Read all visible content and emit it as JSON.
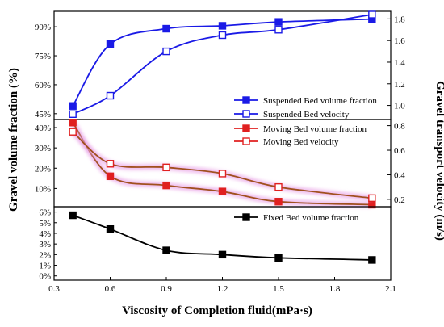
{
  "chart_data": {
    "type": "line",
    "xlabel": "Viscosity of Completion fluid(mPa·s)",
    "ylabel_left": "Gravel volume fraction (%)",
    "ylabel_right": "Gravel transport velocity (m/s)",
    "x_ticks": [
      "0.3",
      "0.6",
      "0.9",
      "1.2",
      "1.5",
      "1.8",
      "2.1"
    ],
    "xlim": [
      0.3,
      2.1
    ],
    "x": [
      0.4,
      0.6,
      0.9,
      1.2,
      1.5,
      2.0
    ],
    "panels": [
      {
        "name": "suspended",
        "left_ticks": [
          "45%",
          "60%",
          "75%",
          "90%"
        ],
        "left_lim": [
          42,
          98
        ],
        "right_ticks": [
          "1.0",
          "1.2",
          "1.4",
          "1.6",
          "1.8"
        ],
        "right_lim": [
          0.87,
          1.87
        ],
        "series": [
          {
            "name": "Suspended Bed volume fraction",
            "axis": "left",
            "marker": "filled",
            "color": "#1a1ae6",
            "values": [
              49,
              81,
              89,
              90.5,
              92.5,
              94
            ]
          },
          {
            "name": "Suspended Bed velocity",
            "axis": "right",
            "marker": "open",
            "color": "#1a1ae6",
            "values": [
              0.92,
              1.09,
              1.5,
              1.65,
              1.7,
              1.84
            ]
          }
        ]
      },
      {
        "name": "moving",
        "left_ticks": [
          "10%",
          "20%",
          "30%",
          "40%"
        ],
        "left_lim": [
          1,
          44
        ],
        "right_ticks": [
          "0.2",
          "0.4",
          "0.6",
          "0.8"
        ],
        "right_lim": [
          0.14,
          0.85
        ],
        "series": [
          {
            "name": "Moving Bed volume fraction",
            "axis": "left",
            "marker": "filled",
            "color": "#e02020",
            "values": [
              42.5,
              16,
              11.5,
              8.5,
              3.5,
              2
            ]
          },
          {
            "name": "Moving Bed velocity",
            "axis": "right",
            "marker": "open",
            "color": "#e02020",
            "values": [
              0.75,
              0.49,
              0.46,
              0.41,
              0.3,
              0.21
            ]
          }
        ]
      },
      {
        "name": "fixed",
        "left_ticks": [
          "0%",
          "1%",
          "2%",
          "3%",
          "4%",
          "5%",
          "6%"
        ],
        "left_lim": [
          -0.4,
          6.5
        ],
        "right_ticks": [],
        "series": [
          {
            "name": "Fixed Bed volume fraction",
            "axis": "left",
            "marker": "filled",
            "color": "#000000",
            "values": [
              5.7,
              4.4,
              2.4,
              2.0,
              1.7,
              1.5
            ]
          }
        ]
      }
    ]
  }
}
